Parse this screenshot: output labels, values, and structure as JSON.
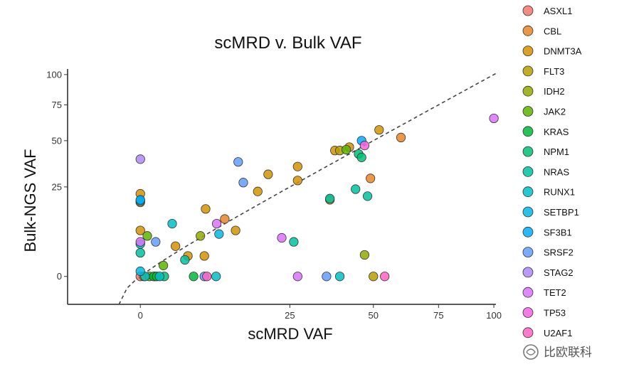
{
  "chart_data": {
    "type": "scatter",
    "title": "scMRD v. Bulk VAF",
    "xlabel": "scMRD VAF",
    "ylabel": "Bulk-NGS VAF",
    "scale": "sqrt",
    "xlim": [
      -3,
      101
    ],
    "ylim": [
      -1.5,
      105
    ],
    "x_ticks": [
      0,
      25,
      50,
      75,
      100
    ],
    "y_ticks": [
      0,
      25,
      50,
      75,
      100
    ],
    "reference_line": "y = x (dashed)",
    "grid": false,
    "legend_position": "right",
    "series": [
      {
        "name": "ASXL1",
        "color": "#F8766D",
        "points": [
          [
            0,
            0
          ]
        ]
      },
      {
        "name": "CBL",
        "color": "#E88526",
        "points": [
          [
            11,
            12.5
          ],
          [
            49,
            29
          ],
          [
            60,
            52
          ]
        ]
      },
      {
        "name": "DNMT3A",
        "color": "#D39200",
        "points": [
          [
            0,
            22
          ],
          [
            0,
            18.5
          ],
          [
            0,
            9
          ],
          [
            0.3,
            0
          ],
          [
            3.6,
            5
          ],
          [
            5.2,
            3
          ],
          [
            7.6,
            3
          ],
          [
            7.8,
            16
          ],
          [
            13,
            9
          ],
          [
            17.5,
            23
          ],
          [
            19.8,
            31
          ],
          [
            27,
            28
          ],
          [
            27,
            35
          ],
          [
            37.5,
            44
          ],
          [
            42,
            46
          ],
          [
            52,
            57
          ]
        ]
      },
      {
        "name": "FLT3",
        "color": "#B79F00",
        "points": [
          [
            36,
            19.5
          ],
          [
            39,
            44
          ],
          [
            50,
            0
          ]
        ]
      },
      {
        "name": "IDH2",
        "color": "#93AA00",
        "points": [
          [
            7,
            7.5
          ],
          [
            47,
            3.2
          ]
        ]
      },
      {
        "name": "JAK2",
        "color": "#5EB300",
        "points": [
          [
            0.8,
            0
          ],
          [
            0.6,
            7.5
          ],
          [
            1.3,
            0
          ],
          [
            2.2,
            1.4
          ],
          [
            41,
            44.5
          ]
        ]
      },
      {
        "name": "KRAS",
        "color": "#00BA38",
        "points": [
          [
            1.2,
            0
          ],
          [
            1.5,
            0
          ],
          [
            6,
            0
          ]
        ]
      },
      {
        "name": "NPM1",
        "color": "#00BF74",
        "points": [
          [
            2.3,
            0
          ],
          [
            45,
            42
          ],
          [
            46,
            40
          ]
        ]
      },
      {
        "name": "NRAS",
        "color": "#00C19F",
        "points": [
          [
            0,
            3.6
          ],
          [
            4.8,
            2.3
          ],
          [
            26,
            6
          ],
          [
            36,
            20
          ],
          [
            44,
            24
          ],
          [
            48,
            21
          ]
        ]
      },
      {
        "name": "RUNX1",
        "color": "#00BFC4",
        "points": [
          [
            0,
            5.5
          ],
          [
            0.4,
            0
          ],
          [
            1.8,
            0
          ],
          [
            3.2,
            11
          ],
          [
            9.5,
            0
          ],
          [
            39,
            0
          ]
        ]
      },
      {
        "name": "SETBP1",
        "color": "#00B9E3",
        "points": [
          [
            0,
            0.6
          ],
          [
            0,
            19
          ],
          [
            10,
            8
          ]
        ]
      },
      {
        "name": "SF3B1",
        "color": "#00ADFA",
        "points": [
          [
            0,
            19.5
          ],
          [
            46,
            50
          ]
        ]
      },
      {
        "name": "SRSF2",
        "color": "#619CFF",
        "points": [
          [
            1.4,
            6
          ],
          [
            13.5,
            37.5
          ],
          [
            14.5,
            27
          ],
          [
            35,
            0
          ],
          [
            7.6,
            0
          ]
        ]
      },
      {
        "name": "STAG2",
        "color": "#AE87FF",
        "points": [
          [
            0,
            39
          ]
        ]
      },
      {
        "name": "TET2",
        "color": "#DB72FB",
        "points": [
          [
            9.6,
            11
          ],
          [
            23,
            7
          ],
          [
            27,
            0
          ],
          [
            100,
            65
          ],
          [
            0,
            6
          ]
        ]
      },
      {
        "name": "TP53",
        "color": "#F564E3",
        "points": [
          [
            47,
            47
          ]
        ]
      },
      {
        "name": "U2AF1",
        "color": "#FF61C3",
        "points": [
          [
            8,
            0
          ],
          [
            54,
            0
          ]
        ]
      }
    ]
  },
  "watermark": "比欧联科"
}
